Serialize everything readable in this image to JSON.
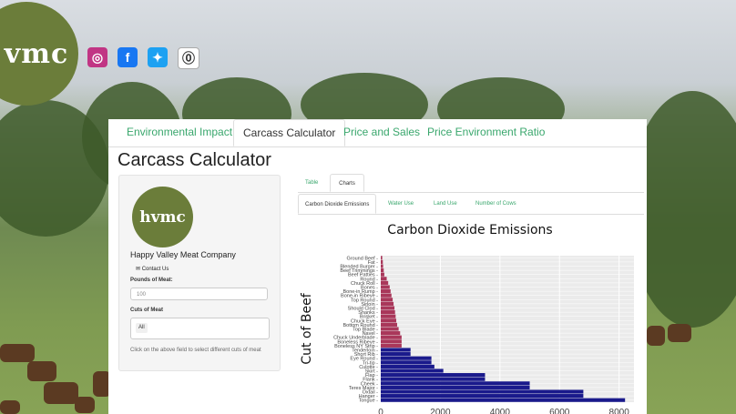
{
  "header": {
    "logo_text": "vmc",
    "social": [
      {
        "name": "instagram-icon",
        "color": "#c13584",
        "glyph": "◎"
      },
      {
        "name": "facebook-icon",
        "color": "#1877f2",
        "glyph": "f"
      },
      {
        "name": "twitter-icon",
        "color": "#1da1f2",
        "glyph": "✦"
      },
      {
        "name": "app-icon",
        "color": "#ffffff",
        "glyph": "⓪"
      }
    ]
  },
  "nav": {
    "tabs": [
      {
        "label": "Environmental Impact",
        "active": false
      },
      {
        "label": "Carcass Calculator",
        "active": true
      },
      {
        "label": "Price and Sales",
        "active": false
      },
      {
        "label": "Price Environment Ratio",
        "active": false
      }
    ]
  },
  "page_title": "Carcass Calculator",
  "sidebar": {
    "logo_text": "hvmc",
    "company": "Happy Valley Meat Company",
    "contact": "Contact Us",
    "pounds_label": "Pounds of Meat:",
    "pounds_placeholder": "100",
    "cuts_label": "Cuts of Meat",
    "cuts_selected": "All",
    "help": "Click on the above field to select different cuts of meat"
  },
  "subtabs": [
    {
      "label": "Table",
      "active": false
    },
    {
      "label": "Charts",
      "active": true
    }
  ],
  "chart_tabs": [
    {
      "label": "Carbon Dioxide Emissions",
      "active": true
    },
    {
      "label": "Water Use",
      "active": false
    },
    {
      "label": "Land Use",
      "active": false
    },
    {
      "label": "Number of Cows",
      "active": false
    }
  ],
  "chart_data": {
    "type": "bar",
    "orientation": "horizontal",
    "title": "Carbon Dioxide Emissions",
    "ylabel": "Cut of Beef",
    "xlabel": "",
    "x_ticks": [
      "0",
      "2000",
      "4000",
      "6000",
      "8000"
    ],
    "xlim": [
      0,
      8500
    ],
    "categories": [
      "Ground Beef",
      "Fat",
      "Blended Burger",
      "Beef Trimmings",
      "Beef Patties",
      "Round",
      "Chuck Roll",
      "Bones",
      "Bone-in Rump",
      "Bone-in Ribeye",
      "Top Round",
      "Sirloin",
      "Should Clod",
      "Shanks",
      "Brisket",
      "Chuck Eye",
      "Bottom Round",
      "Top Blade",
      "Navel",
      "Chuck Underblade",
      "Boneless Ribeye",
      "Boneless NY Strip",
      "Tenderloin",
      "Short Rib",
      "Eye Round",
      "Tri-tip",
      "Culotte",
      "Skirt",
      "Flap",
      "Flank",
      "Cheek",
      "Teres Major",
      "Oxtail",
      "Hanger",
      "Tongue"
    ],
    "values": [
      50,
      70,
      80,
      100,
      120,
      200,
      250,
      300,
      330,
      360,
      400,
      430,
      460,
      480,
      500,
      520,
      550,
      600,
      650,
      700,
      700,
      700,
      1000,
      1000,
      1700,
      1700,
      1800,
      2100,
      3500,
      3500,
      5000,
      5000,
      6800,
      6800,
      8200
    ],
    "highlight_count": 22,
    "colors": {
      "highlight": "#a9375a",
      "default": "#1a1a8c",
      "panel": "#ebebeb"
    },
    "grid": true
  }
}
